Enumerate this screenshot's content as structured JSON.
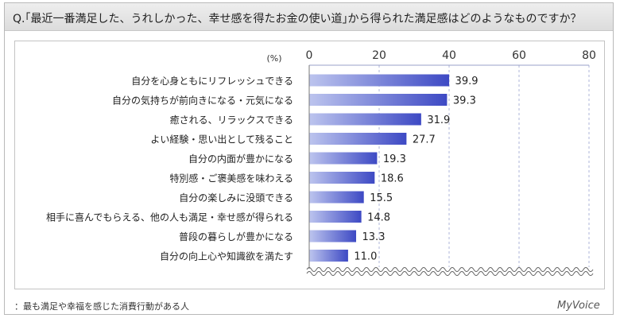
{
  "question": "Q.｢最近一番満足した、うれしかった、幸せ感を得たお金の使い道｣から得られた満足感はどのようなものですか？",
  "footnote": "：最も満足や幸福を感じた消費行動がある人",
  "brand": "MyVoice",
  "colors": {
    "bar_light": "#bcc4ee",
    "bar_dark": "#3d49c4",
    "grid": "#aeb4d8",
    "title_bg": "#e4e4e4"
  },
  "chart_data": {
    "type": "bar",
    "orientation": "horizontal",
    "unit_label": "(%)",
    "xlim": [
      0,
      80
    ],
    "ticks": [
      0,
      20,
      40,
      60,
      80
    ],
    "grid": true,
    "categories": [
      "自分を心身ともにリフレッシュできる",
      "自分の気持ちが前向きになる・元気になる",
      "癒される、リラックスできる",
      "よい経験・思い出として残ること",
      "自分の内面が豊かになる",
      "特別感・ご褒美感を味わえる",
      "自分の楽しみに没頭できる",
      "相手に喜んでもらえる、他の人も満足・幸せ感が得られる",
      "普段の暮らしが豊かになる",
      "自分の向上心や知識欲を満たす"
    ],
    "values": [
      39.9,
      39.3,
      31.9,
      27.7,
      19.3,
      18.6,
      15.5,
      14.8,
      13.3,
      11.0
    ],
    "value_labels": [
      "39.9",
      "39.3",
      "31.9",
      "27.7",
      "19.3",
      "18.6",
      "15.5",
      "14.8",
      "13.3",
      "11.0"
    ]
  }
}
